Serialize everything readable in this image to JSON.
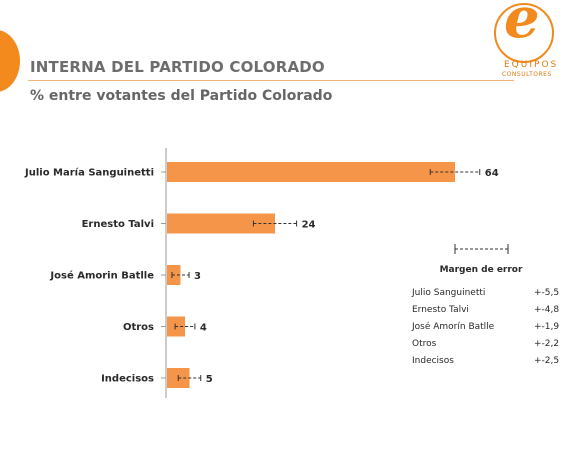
{
  "header": {
    "title": "INTERNA DEL PARTIDO COLORADO",
    "subtitle": "% entre votantes del Partido Colorado"
  },
  "logo": {
    "letter": "e",
    "line1": "EQUIPOS",
    "line2": "CONSULTORES"
  },
  "colors": {
    "accent": "#f28a1e",
    "bar": "#f5954a"
  },
  "chart_data": {
    "type": "bar",
    "orientation": "horizontal",
    "categories": [
      "Julio María Sanguinetti",
      "Ernesto Talvi",
      "José Amorin Batlle",
      "Otros",
      "Indecisos"
    ],
    "values": [
      64,
      24,
      3,
      4,
      5
    ],
    "error_margins": [
      5.5,
      4.8,
      1.9,
      2.2,
      2.5
    ],
    "xlim": [
      0,
      80
    ],
    "grid": false,
    "legend": {
      "title": "Margen de error",
      "rows": [
        {
          "name": "Julio Sanguinetti",
          "value": "+-5,5"
        },
        {
          "name": "Ernesto Talvi",
          "value": "+-4,8"
        },
        {
          "name": "José Amorín Batlle",
          "value": "+-1,9"
        },
        {
          "name": "Otros",
          "value": "+-2,2"
        },
        {
          "name": "Indecisos",
          "value": "+-2,5"
        }
      ]
    }
  }
}
